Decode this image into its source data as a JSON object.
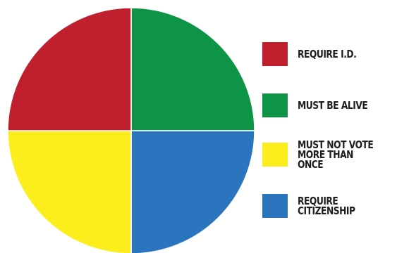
{
  "chart_data": {
    "type": "pie",
    "categories": [
      "REQUIRE I.D.",
      "MUST BE ALIVE",
      "MUST NOT VOTE\nMORE THAN ONCE",
      "REQUIRE\nCITIZENSHIP"
    ],
    "values": [
      25,
      25,
      25,
      25
    ],
    "colors": [
      "#c0202e",
      "#0e9447",
      "#fbee1c",
      "#2a75bd"
    ],
    "legend_position": "right",
    "title": "",
    "grid": false
  }
}
